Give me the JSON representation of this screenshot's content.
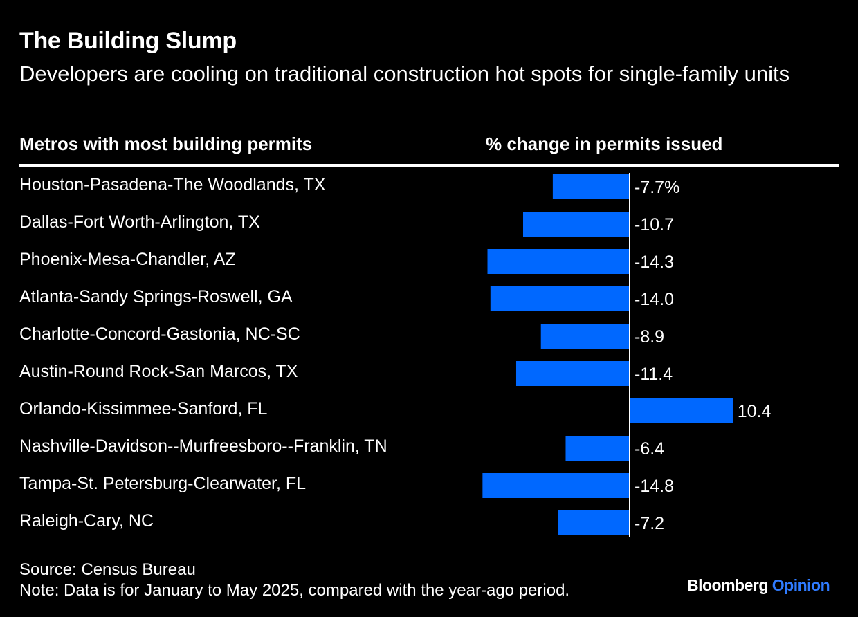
{
  "header": {
    "title": "The Building Slump",
    "subtitle": "Developers are cooling on traditional construction hot spots for single-family units"
  },
  "columns": {
    "left": "Metros with most building permits",
    "right": "% change in permits issued"
  },
  "colors": {
    "background": "#000000",
    "bar": "#0068ff",
    "text": "#ffffff",
    "brand_accent": "#2f7bff"
  },
  "chart_data": {
    "type": "bar",
    "orientation": "horizontal",
    "categories": [
      "Houston-Pasadena-The Woodlands, TX",
      "Dallas-Fort Worth-Arlington, TX",
      "Phoenix-Mesa-Chandler, AZ",
      "Atlanta-Sandy Springs-Roswell, GA",
      "Charlotte-Concord-Gastonia, NC-SC",
      "Austin-Round Rock-San Marcos, TX",
      "Orlando-Kissimmee-Sanford, FL",
      "Nashville-Davidson--Murfreesboro--Franklin, TN",
      "Tampa-St. Petersburg-Clearwater, FL",
      "Raleigh-Cary, NC"
    ],
    "values": [
      -7.7,
      -10.7,
      -14.3,
      -14.0,
      -8.9,
      -11.4,
      10.4,
      -6.4,
      -14.8,
      -7.2
    ],
    "value_labels": [
      "-7.7%",
      "-10.7",
      "-14.3",
      "-14.0",
      "-8.9",
      "-11.4",
      "10.4",
      "-6.4",
      "-14.8",
      "-7.2"
    ],
    "xlabel": "% change in permits issued",
    "ylabel": "",
    "xlim": [
      -14.8,
      10.4
    ],
    "grid": false,
    "legend": "none"
  },
  "footer": {
    "source": "Source: Census Bureau",
    "note": "Note: Data is for January to May 2025, compared with the year-ago period."
  },
  "brand": {
    "name": "Bloomberg",
    "section": "Opinion"
  }
}
